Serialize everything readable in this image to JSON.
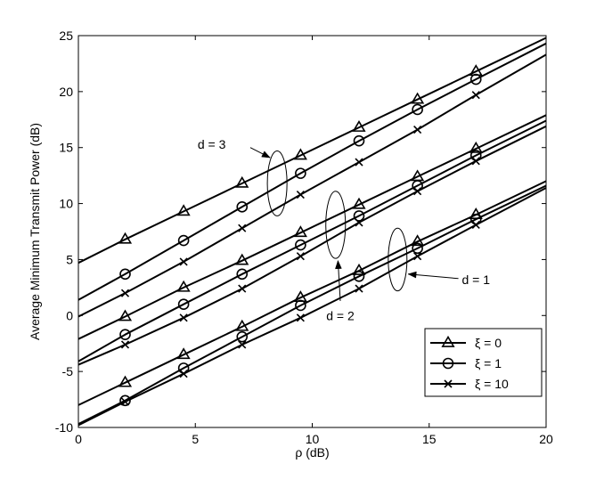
{
  "chart_data": {
    "type": "line",
    "title": "",
    "xlabel": "ρ (dB)",
    "ylabel": "Average Minimum Transmit Power (dB)",
    "xlim": [
      0,
      20
    ],
    "ylim": [
      -10,
      25
    ],
    "xticks": [
      0,
      5,
      10,
      15,
      20
    ],
    "yticks": [
      -10,
      -5,
      0,
      5,
      10,
      15,
      20,
      25
    ],
    "grid": false,
    "legend_position": "bottom-right",
    "legend": [
      {
        "label": "ξ = 0",
        "marker": "triangle"
      },
      {
        "label": "ξ = 1",
        "marker": "circle"
      },
      {
        "label": "ξ = 10",
        "marker": "x"
      }
    ],
    "marker_x": [
      2,
      4.5,
      7,
      9.5,
      12,
      14.5,
      17
    ],
    "series": [
      {
        "group": "d = 3",
        "marker": "triangle",
        "line": [
          [
            0,
            4.7
          ],
          [
            20,
            24.8
          ]
        ],
        "points": [
          6.8,
          9.3,
          11.8,
          14.3,
          16.8,
          19.3,
          21.8
        ]
      },
      {
        "group": "d = 3",
        "marker": "circle",
        "line": [
          [
            0,
            1.4
          ],
          [
            20,
            24.3
          ]
        ],
        "points": [
          3.7,
          6.7,
          9.7,
          12.7,
          15.6,
          18.4,
          21.1
        ]
      },
      {
        "group": "d = 3",
        "marker": "x",
        "line": [
          [
            0,
            -0.1
          ],
          [
            20,
            23.3
          ]
        ],
        "points": [
          2.0,
          4.8,
          7.8,
          10.8,
          13.7,
          16.6,
          19.7
        ]
      },
      {
        "group": "d = 2",
        "marker": "triangle",
        "line": [
          [
            0,
            -2.1
          ],
          [
            20,
            17.9
          ]
        ],
        "points": [
          -0.1,
          2.5,
          4.9,
          7.4,
          9.9,
          12.4,
          14.9
        ]
      },
      {
        "group": "d = 2",
        "marker": "circle",
        "line": [
          [
            0,
            -4.1
          ],
          [
            20,
            17.4
          ]
        ],
        "points": [
          -1.7,
          1.0,
          3.7,
          6.3,
          8.9,
          11.6,
          14.3
        ]
      },
      {
        "group": "d = 2",
        "marker": "x",
        "line": [
          [
            0,
            -4.4
          ],
          [
            20,
            16.9
          ]
        ],
        "points": [
          -2.6,
          -0.2,
          2.4,
          5.3,
          8.3,
          11.1,
          13.8
        ]
      },
      {
        "group": "d = 1",
        "marker": "triangle",
        "line": [
          [
            0,
            -8.0
          ],
          [
            20,
            12.0
          ]
        ],
        "points": [
          -6.0,
          -3.5,
          -1.0,
          1.6,
          4.0,
          6.6,
          9.0
        ]
      },
      {
        "group": "d = 1",
        "marker": "circle",
        "line": [
          [
            0,
            -9.7
          ],
          [
            20,
            11.6
          ]
        ],
        "points": [
          -7.6,
          -4.7,
          -1.9,
          0.9,
          3.5,
          6.0,
          8.6
        ]
      },
      {
        "group": "d = 1",
        "marker": "x",
        "line": [
          [
            0,
            -9.8
          ],
          [
            20,
            11.4
          ]
        ],
        "points": [
          -7.7,
          -5.2,
          -2.6,
          -0.2,
          2.4,
          5.3,
          8.1
        ]
      }
    ],
    "annotations": [
      {
        "text": "d = 3",
        "ellipse": {
          "cx": 8.5,
          "cy": 11.8,
          "rx": 0.42,
          "ry": 2.9
        },
        "label_at": [
          6.3,
          15.3
        ],
        "arrow_from": [
          7.35,
          15.0
        ],
        "arrow_to": [
          8.2,
          14.1
        ]
      },
      {
        "text": "d = 2",
        "ellipse": {
          "cx": 11.0,
          "cy": 8.1,
          "rx": 0.42,
          "ry": 3.0
        },
        "label_at": [
          11.2,
          0.0
        ],
        "arrow_from": [
          11.2,
          1.3
        ],
        "arrow_to": [
          11.1,
          4.9
        ]
      },
      {
        "text": "d = 1",
        "ellipse": {
          "cx": 13.65,
          "cy": 5.0,
          "rx": 0.4,
          "ry": 2.8
        },
        "label_at": [
          16.4,
          3.2
        ],
        "arrow_from": [
          16.25,
          3.3
        ],
        "arrow_to": [
          14.1,
          3.7
        ]
      }
    ]
  }
}
